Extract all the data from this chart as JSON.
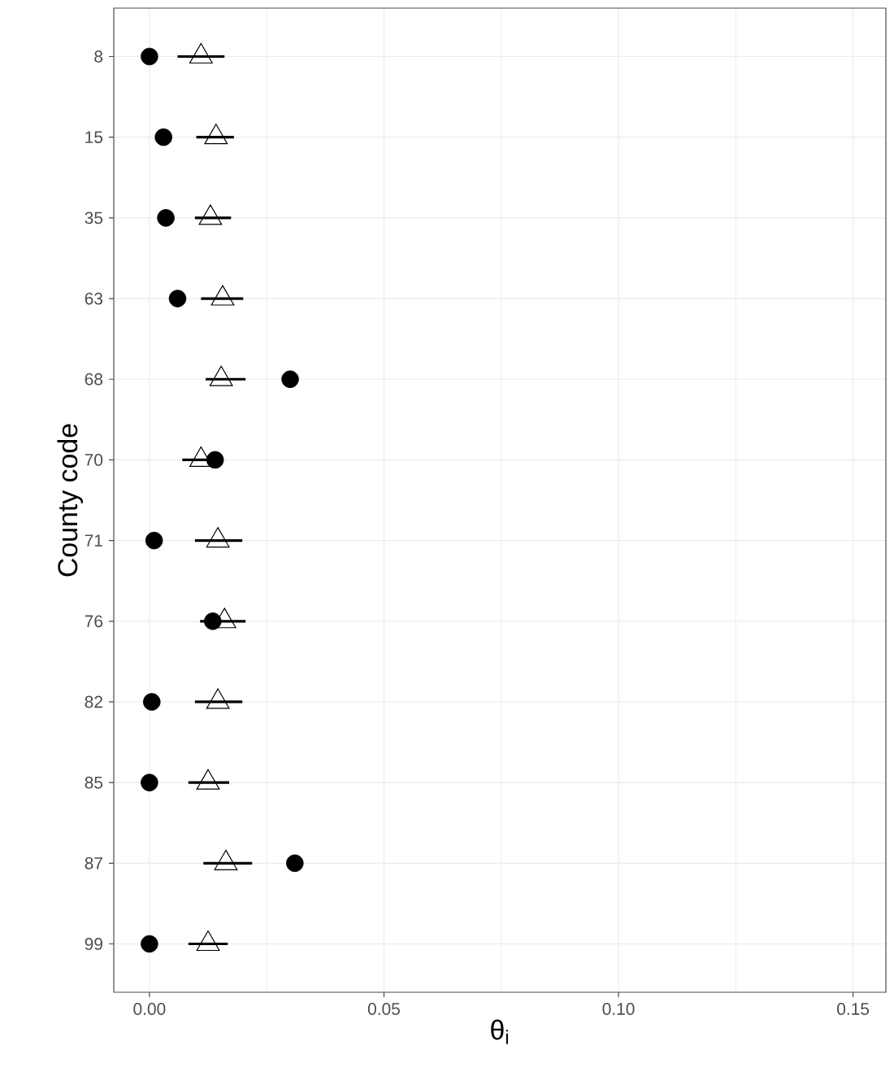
{
  "chart_data": {
    "type": "scatter",
    "orientation": "horizontal",
    "ylabel": "County code",
    "xlabel": "θ$_{i}$",
    "categories": [
      "8",
      "15",
      "35",
      "63",
      "68",
      "70",
      "71",
      "76",
      "82",
      "85",
      "87",
      "99"
    ],
    "xlim": [
      -0.0076,
      0.157
    ],
    "xticks": [
      {
        "value": 0,
        "label": "0.00"
      },
      {
        "value": 0.025,
        "label": null
      },
      {
        "value": 0.05,
        "label": "0.05"
      },
      {
        "value": 0.075,
        "label": null
      },
      {
        "value": 0.1,
        "label": "0.10"
      },
      {
        "value": 0.125,
        "label": null
      },
      {
        "value": 0.15,
        "label": "0.15"
      }
    ],
    "grid": true,
    "series": [
      {
        "color": "#000000",
        "marker": "triangle",
        "values": [
          0.011,
          0.0142,
          0.013,
          0.0156,
          0.0153,
          0.011,
          0.0146,
          0.016,
          0.0146,
          0.0125,
          0.0163,
          0.0125
        ],
        "errors": [
          [
            0.006,
            0.016
          ],
          [
            0.01,
            0.018
          ],
          [
            0.0097,
            0.0174
          ],
          [
            0.011,
            0.02
          ],
          [
            0.012,
            0.0205
          ],
          [
            0.007,
            0.0146
          ],
          [
            0.0097,
            0.0198
          ],
          [
            0.0108,
            0.0205
          ],
          [
            0.0097,
            0.0198
          ],
          [
            0.0083,
            0.017
          ],
          [
            0.0115,
            0.0219
          ],
          [
            0.0083,
            0.0167
          ]
        ]
      },
      {
        "color": "#000000",
        "marker": "circle",
        "values": [
          0,
          0.003,
          0.0035,
          0.006,
          0.03,
          0.014,
          0.001,
          0.0135,
          0.0005,
          0,
          0.031,
          0
        ]
      }
    ]
  }
}
